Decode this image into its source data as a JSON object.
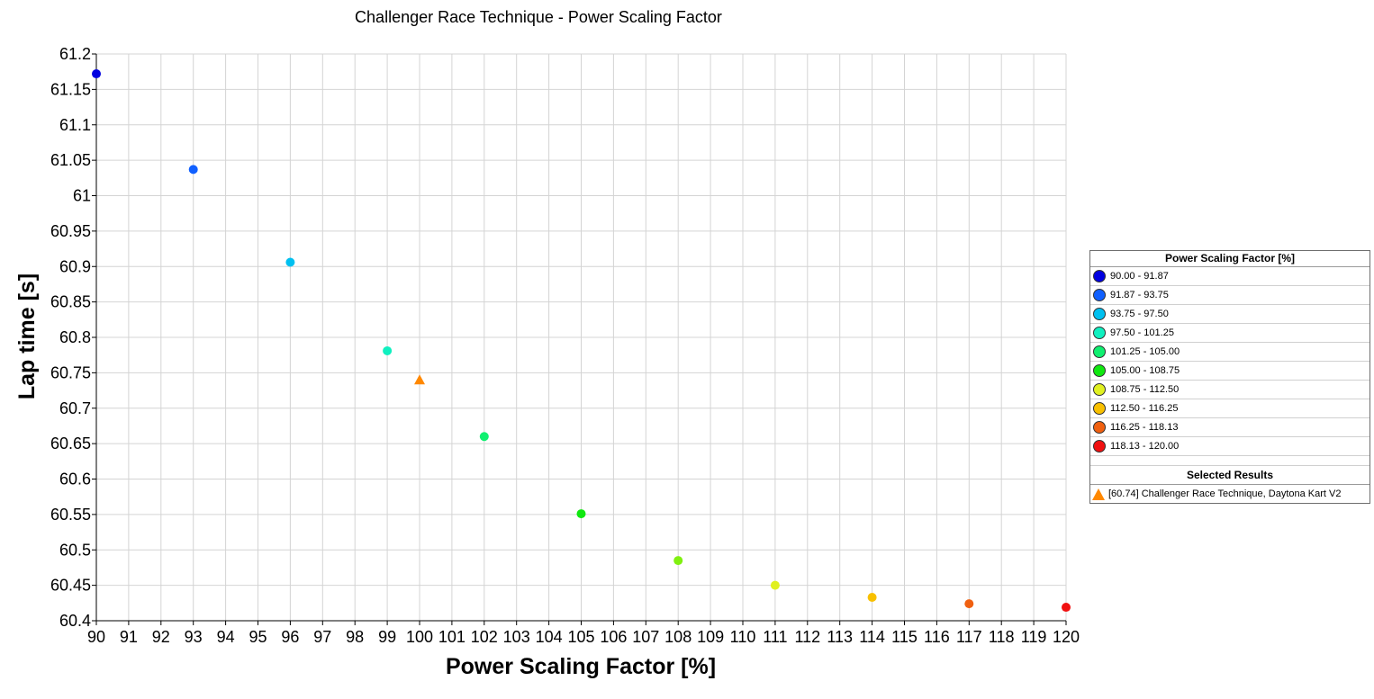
{
  "chart_data": {
    "type": "scatter",
    "title": "Challenger Race Technique - Power Scaling Factor",
    "xlabel": "Power Scaling Factor [%]",
    "ylabel": "Lap time [s]",
    "xlim": [
      90,
      120
    ],
    "ylim": [
      60.4,
      61.2
    ],
    "x_ticks": [
      "90",
      "91",
      "92",
      "93",
      "94",
      "95",
      "96",
      "97",
      "98",
      "99",
      "100",
      "101",
      "102",
      "103",
      "104",
      "105",
      "106",
      "107",
      "108",
      "109",
      "110",
      "111",
      "112",
      "113",
      "114",
      "115",
      "116",
      "117",
      "118",
      "119",
      "120"
    ],
    "y_ticks": [
      "60.4",
      "60.45",
      "60.5",
      "60.55",
      "60.6",
      "60.65",
      "60.7",
      "60.75",
      "60.8",
      "60.85",
      "60.9",
      "60.95",
      "61",
      "61.05",
      "61.1",
      "61.15",
      "61.2"
    ],
    "grid": true,
    "legend_position": "right",
    "points": [
      {
        "x": 90,
        "y": 61.172,
        "color": "#0000e0"
      },
      {
        "x": 93,
        "y": 61.037,
        "color": "#1060ff"
      },
      {
        "x": 96,
        "y": 60.906,
        "color": "#00c0f0"
      },
      {
        "x": 99,
        "y": 60.781,
        "color": "#10f0c0"
      },
      {
        "x": 102,
        "y": 60.66,
        "color": "#10f070"
      },
      {
        "x": 105,
        "y": 60.551,
        "color": "#10e810"
      },
      {
        "x": 108,
        "y": 60.485,
        "color": "#80f010"
      },
      {
        "x": 111,
        "y": 60.45,
        "color": "#e0f020"
      },
      {
        "x": 114,
        "y": 60.433,
        "color": "#f8c000"
      },
      {
        "x": 117,
        "y": 60.424,
        "color": "#f06010"
      },
      {
        "x": 120,
        "y": 60.419,
        "color": "#f01010"
      }
    ],
    "selected": [
      {
        "x": 100,
        "y": 60.74,
        "color": "#ff8800",
        "marker": "triangle"
      }
    ],
    "legend": {
      "title": "Power Scaling Factor [%]",
      "entries": [
        {
          "label": "90.00 - 91.87",
          "color": "#0000e0"
        },
        {
          "label": "91.87 - 93.75",
          "color": "#1060ff"
        },
        {
          "label": "93.75 - 97.50",
          "color": "#00c0f0"
        },
        {
          "label": "97.50 - 101.25",
          "color": "#10f0c0"
        },
        {
          "label": "101.25 - 105.00",
          "color": "#10f070"
        },
        {
          "label": "105.00 - 108.75",
          "color": "#10e810"
        },
        {
          "label": "108.75 - 112.50",
          "color": "#e0f020"
        },
        {
          "label": "112.50 - 116.25",
          "color": "#f8c000"
        },
        {
          "label": "116.25 - 118.13",
          "color": "#f06010"
        },
        {
          "label": "118.13 - 120.00",
          "color": "#f01010"
        }
      ],
      "selected_title": "Selected Results",
      "selected_label": "[60.74] Challenger Race Technique, Daytona Kart V2"
    }
  }
}
